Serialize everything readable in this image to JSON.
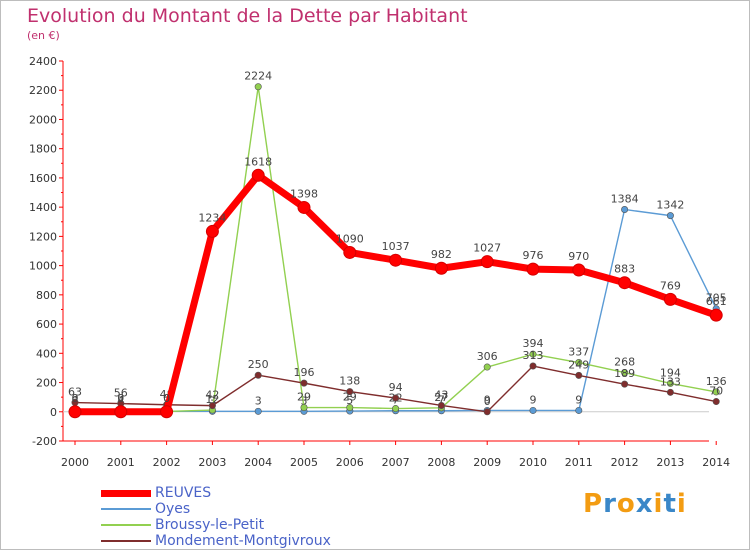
{
  "chart_data": {
    "type": "line",
    "title": "Evolution du Montant de la Dette par Habitant",
    "subtitle": "(en €)",
    "xlabel": "",
    "ylabel": "",
    "x": [
      "2000",
      "2001",
      "2002",
      "2003",
      "2004",
      "2005",
      "2006",
      "2007",
      "2008",
      "2009",
      "2010",
      "2011",
      "2012",
      "2013",
      "2014"
    ],
    "ylim": [
      -200,
      2400
    ],
    "yticks": [
      -200,
      0,
      200,
      400,
      600,
      800,
      1000,
      1200,
      1400,
      1600,
      1800,
      2000,
      2200,
      2400
    ],
    "grid": false,
    "legend_position": "bottom-left",
    "series": [
      {
        "name": "REUVES",
        "color": "#ff0000",
        "values": [
          0,
          0,
          0,
          1234,
          1618,
          1398,
          1090,
          1037,
          982,
          1027,
          976,
          970,
          883,
          769,
          661
        ]
      },
      {
        "name": "Oyes",
        "color": "#5b9bd5",
        "values": [
          3,
          3,
          3,
          3,
          3,
          3,
          5,
          7,
          7,
          9,
          9,
          9,
          1384,
          1342,
          705
        ]
      },
      {
        "name": "Broussy-le-Petit",
        "color": "#92d050",
        "values": [
          6,
          4,
          2,
          12,
          2224,
          29,
          29,
          22,
          27,
          306,
          394,
          337,
          268,
          194,
          136
        ]
      },
      {
        "name": "Mondement-Montgivroux",
        "color": "#7f2d2d",
        "values": [
          63,
          56,
          48,
          42,
          250,
          196,
          138,
          94,
          43,
          0,
          313,
          249,
          189,
          133,
          70
        ]
      }
    ]
  },
  "branding": {
    "logo_text": "Proxiti",
    "logo_colors": [
      "#f39c12",
      "#3a87c8",
      "#f39c12",
      "#3a87c8",
      "#f39c12",
      "#3a87c8",
      "#f39c12"
    ]
  }
}
